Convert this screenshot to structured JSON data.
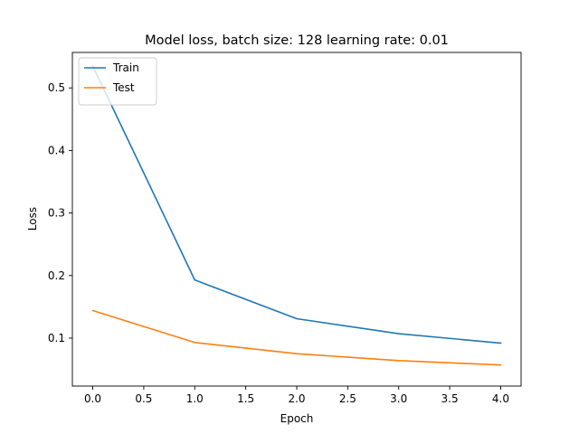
{
  "chart_data": {
    "type": "line",
    "title": "Model loss, batch size: 128 learning rate: 0.01",
    "xlabel": "Epoch",
    "ylabel": "Loss",
    "x": [
      0,
      1,
      2,
      3,
      4
    ],
    "xlim": [
      -0.2,
      4.2
    ],
    "ylim": [
      0.0233,
      0.5567
    ],
    "xticks": [
      0.0,
      0.5,
      1.0,
      1.5,
      2.0,
      2.5,
      3.0,
      3.5,
      4.0
    ],
    "xtick_labels": [
      "0.0",
      "0.5",
      "1.0",
      "1.5",
      "2.0",
      "2.5",
      "3.0",
      "3.5",
      "4.0"
    ],
    "yticks": [
      0.1,
      0.2,
      0.3,
      0.4,
      0.5
    ],
    "ytick_labels": [
      "0.1",
      "0.2",
      "0.3",
      "0.4",
      "0.5"
    ],
    "grid": false,
    "legend_position": "top-left",
    "series": [
      {
        "name": "Train",
        "color": "#1f77b4",
        "values": [
          0.535,
          0.193,
          0.131,
          0.107,
          0.092
        ]
      },
      {
        "name": "Test",
        "color": "#ff7f0e",
        "values": [
          0.144,
          0.093,
          0.075,
          0.064,
          0.057
        ]
      }
    ]
  }
}
